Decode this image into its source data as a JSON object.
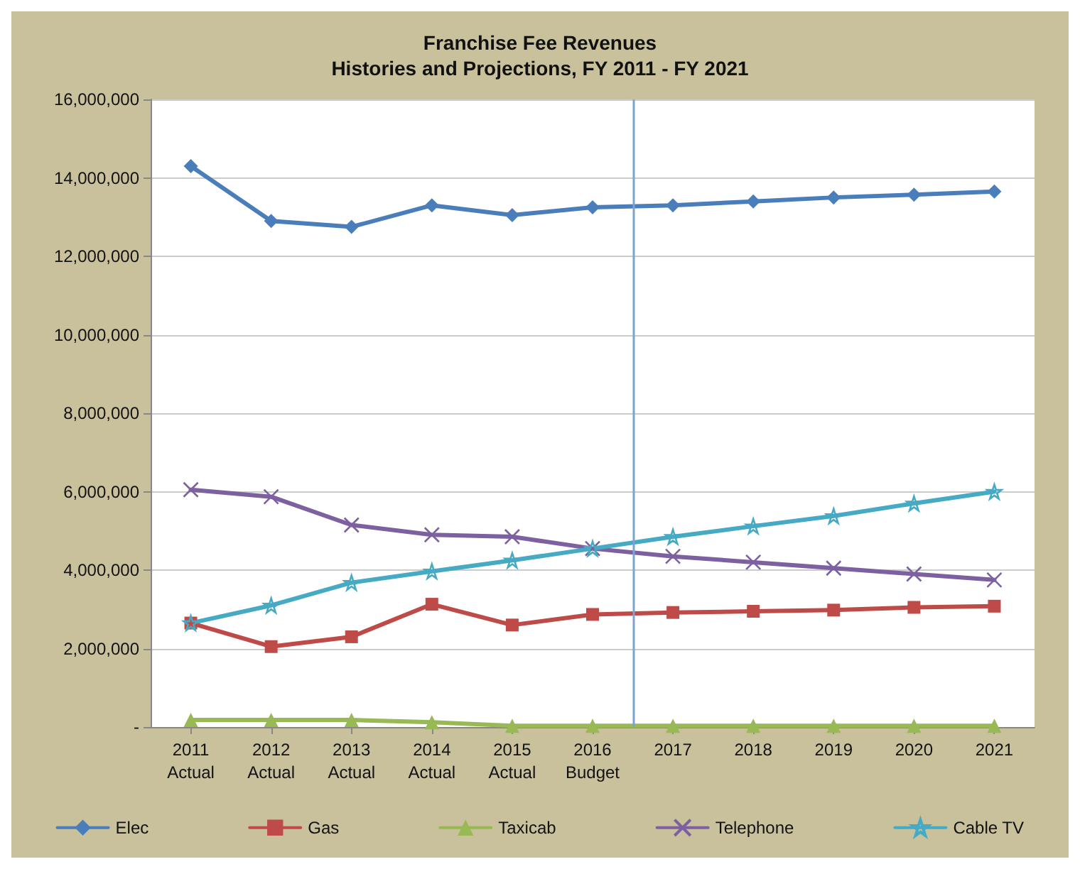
{
  "chart_data": {
    "type": "line",
    "title": "Franchise Fee Revenues",
    "subtitle": "Histories and Projections, FY 2011 - FY 2021",
    "x": [
      2011,
      2012,
      2013,
      2014,
      2015,
      2016,
      2017,
      2018,
      2019,
      2020,
      2021
    ],
    "xlim": [
      2010.5,
      2021.5
    ],
    "xticks": [
      {
        "value": 2011,
        "label": "2011\nActual"
      },
      {
        "value": 2012,
        "label": "2012\nActual"
      },
      {
        "value": 2013,
        "label": "2013\nActual"
      },
      {
        "value": 2014,
        "label": "2014\nActual"
      },
      {
        "value": 2015,
        "label": "2015\nActual"
      },
      {
        "value": 2016,
        "label": "2016\nBudget"
      },
      2017,
      2018,
      2019,
      2020,
      2021
    ],
    "ylim": [
      0,
      16000000
    ],
    "yticks": [
      {
        "value": 0,
        "label": "-"
      },
      {
        "value": 2000000,
        "label": "2,000,000"
      },
      {
        "value": 4000000,
        "label": "4,000,000"
      },
      {
        "value": 6000000,
        "label": "6,000,000"
      },
      {
        "value": 8000000,
        "label": "8,000,000"
      },
      {
        "value": 10000000,
        "label": "10,000,000"
      },
      {
        "value": 12000000,
        "label": "12,000,000"
      },
      {
        "value": 14000000,
        "label": "14,000,000"
      },
      {
        "value": 16000000,
        "label": "16,000,000"
      }
    ],
    "grid": "y",
    "legend": "bottom",
    "line_style": "solid",
    "ref_lines": [
      {
        "axis": "x",
        "value": 2016.5,
        "color": "#7fa3d0"
      }
    ],
    "series": [
      {
        "name": "Elec",
        "color": "#4a7ebb",
        "marker": "diamond",
        "values": [
          14300000,
          12900000,
          12750000,
          13300000,
          13050000,
          13250000,
          13300000,
          13400000,
          13500000,
          13570000,
          13650000
        ]
      },
      {
        "name": "Gas",
        "color": "#be4b48",
        "marker": "square",
        "values": [
          2650000,
          2050000,
          2300000,
          3130000,
          2600000,
          2870000,
          2920000,
          2950000,
          2980000,
          3050000,
          3080000
        ]
      },
      {
        "name": "Taxicab",
        "color": "#98b954",
        "marker": "triangle",
        "values": [
          180000,
          180000,
          180000,
          120000,
          30000,
          30000,
          30000,
          30000,
          30000,
          30000,
          30000
        ]
      },
      {
        "name": "Telephone",
        "color": "#7d60a0",
        "marker": "cross",
        "values": [
          6050000,
          5870000,
          5150000,
          4900000,
          4850000,
          4550000,
          4350000,
          4200000,
          4050000,
          3900000,
          3750000
        ]
      },
      {
        "name": "Cable TV",
        "color": "#46aac5",
        "marker": "star",
        "values": [
          2650000,
          3100000,
          3680000,
          3970000,
          4250000,
          4550000,
          4850000,
          5120000,
          5380000,
          5700000,
          6000000
        ]
      }
    ]
  }
}
